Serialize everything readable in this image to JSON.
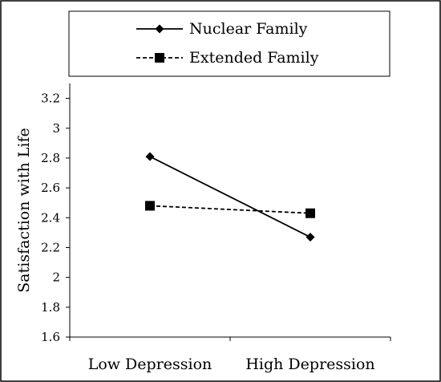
{
  "chart_data": {
    "type": "line",
    "categories": [
      "Low Depression",
      "High Depression"
    ],
    "series": [
      {
        "name": "Nuclear Family",
        "values": [
          2.81,
          2.27
        ],
        "line_style": "solid",
        "marker": "diamond"
      },
      {
        "name": "Extended Family",
        "values": [
          2.48,
          2.43
        ],
        "line_style": "dashed",
        "marker": "square"
      }
    ],
    "title": "",
    "xlabel": "",
    "ylabel": "Satisfaction with Life",
    "ylim": [
      1.6,
      3.3
    ],
    "yticks": [
      1.6,
      1.8,
      2,
      2.2,
      2.4,
      2.6,
      2.8,
      3,
      3.2
    ],
    "ytick_labels": [
      "1.6",
      "1.8",
      "2",
      "2.2",
      "2.4",
      "2.6",
      "2.8",
      "3",
      "3.2"
    ],
    "grid": false,
    "legend_position": "top",
    "colors": {
      "line": "#000000",
      "background": "#ffffff",
      "frame": "#000000"
    }
  }
}
